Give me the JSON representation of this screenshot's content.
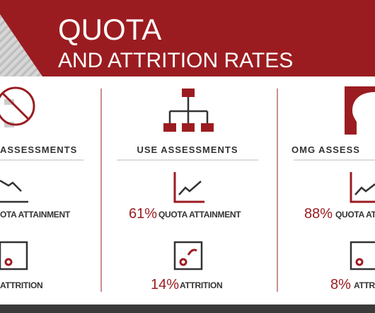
{
  "header": {
    "title_line1": "QUOTA",
    "title_line2": "AND ATTRITION RATES"
  },
  "columns": [
    {
      "heading": "ASSESSMENTS",
      "quota_label": "OTA ATTAINMENT",
      "attrition_label": "ATTRITION"
    },
    {
      "heading": "USE ASSESSMENTS",
      "quota_value": "61%",
      "quota_label": "QUOTA ATTAINMENT",
      "attrition_value": "14%",
      "attrition_label": "ATTRITION"
    },
    {
      "heading": "OMG ASSESS",
      "quota_value": "88%",
      "quota_label": "QUOTA ATT",
      "attrition_value": "8%",
      "attrition_label": "ATTR"
    }
  ]
}
